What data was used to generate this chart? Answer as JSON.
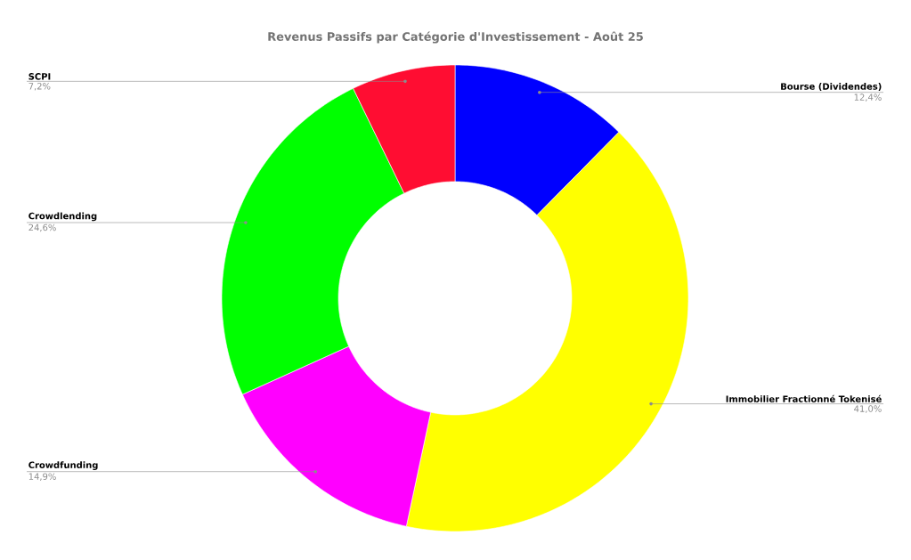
{
  "chart_data": {
    "type": "donut",
    "title": "Revenus Passifs par Catégorie d'Investissement - Août 25",
    "categories": [
      "Bourse (Dividendes)",
      "Immobilier Fractionné Tokenisé",
      "Crowdfunding",
      "Crowdlending",
      "SCPI"
    ],
    "values": [
      12.4,
      41.0,
      14.9,
      24.6,
      7.2
    ],
    "colors": [
      "#0000ff",
      "#ffff00",
      "#ff00ff",
      "#00ff00",
      "#ff0d32"
    ],
    "value_labels": [
      "12,4%",
      "41,0%",
      "14,9%",
      "24,6%",
      "7,2%"
    ]
  }
}
